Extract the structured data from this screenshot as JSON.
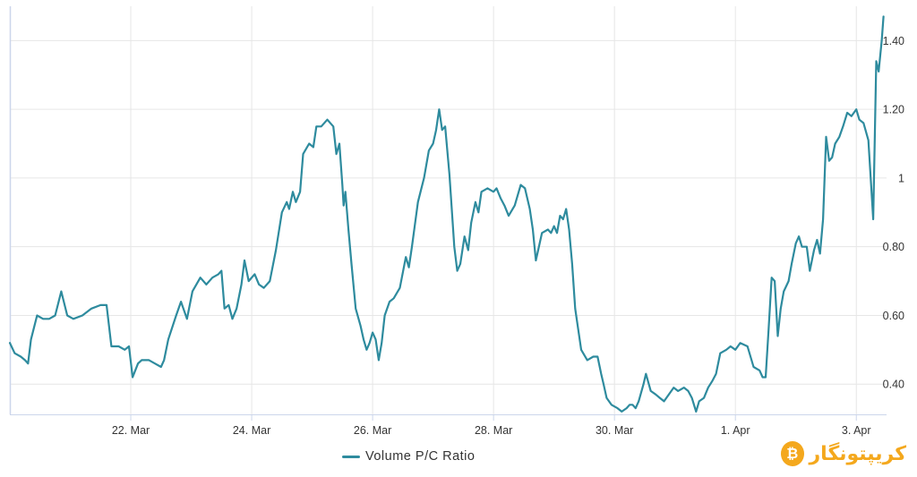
{
  "chart_data": {
    "type": "line",
    "series": [
      {
        "name": "Volume P/C Ratio",
        "color": "#2e8b9e",
        "points": [
          [
            0,
            0.52
          ],
          [
            0.08,
            0.49
          ],
          [
            0.18,
            0.48
          ],
          [
            0.25,
            0.47
          ],
          [
            0.3,
            0.46
          ],
          [
            0.35,
            0.53
          ],
          [
            0.45,
            0.6
          ],
          [
            0.55,
            0.59
          ],
          [
            0.65,
            0.59
          ],
          [
            0.75,
            0.6
          ],
          [
            0.85,
            0.67
          ],
          [
            0.95,
            0.6
          ],
          [
            1.05,
            0.59
          ],
          [
            1.2,
            0.6
          ],
          [
            1.35,
            0.62
          ],
          [
            1.5,
            0.63
          ],
          [
            1.6,
            0.63
          ],
          [
            1.68,
            0.51
          ],
          [
            1.8,
            0.51
          ],
          [
            1.9,
            0.5
          ],
          [
            1.97,
            0.51
          ],
          [
            2.03,
            0.42
          ],
          [
            2.12,
            0.46
          ],
          [
            2.18,
            0.47
          ],
          [
            2.3,
            0.47
          ],
          [
            2.4,
            0.46
          ],
          [
            2.5,
            0.45
          ],
          [
            2.55,
            0.47
          ],
          [
            2.62,
            0.53
          ],
          [
            2.75,
            0.6
          ],
          [
            2.83,
            0.64
          ],
          [
            2.93,
            0.59
          ],
          [
            3.02,
            0.67
          ],
          [
            3.15,
            0.71
          ],
          [
            3.25,
            0.69
          ],
          [
            3.35,
            0.71
          ],
          [
            3.45,
            0.72
          ],
          [
            3.5,
            0.73
          ],
          [
            3.55,
            0.62
          ],
          [
            3.62,
            0.63
          ],
          [
            3.68,
            0.59
          ],
          [
            3.75,
            0.62
          ],
          [
            3.83,
            0.69
          ],
          [
            3.88,
            0.76
          ],
          [
            3.95,
            0.7
          ],
          [
            4.05,
            0.72
          ],
          [
            4.12,
            0.69
          ],
          [
            4.2,
            0.68
          ],
          [
            4.3,
            0.7
          ],
          [
            4.4,
            0.79
          ],
          [
            4.5,
            0.9
          ],
          [
            4.58,
            0.93
          ],
          [
            4.62,
            0.91
          ],
          [
            4.68,
            0.96
          ],
          [
            4.73,
            0.93
          ],
          [
            4.8,
            0.96
          ],
          [
            4.85,
            1.07
          ],
          [
            4.95,
            1.1
          ],
          [
            5.02,
            1.09
          ],
          [
            5.07,
            1.15
          ],
          [
            5.15,
            1.15
          ],
          [
            5.25,
            1.17
          ],
          [
            5.35,
            1.15
          ],
          [
            5.4,
            1.07
          ],
          [
            5.45,
            1.1
          ],
          [
            5.5,
            0.98
          ],
          [
            5.52,
            0.92
          ],
          [
            5.55,
            0.96
          ],
          [
            5.6,
            0.85
          ],
          [
            5.65,
            0.75
          ],
          [
            5.72,
            0.62
          ],
          [
            5.8,
            0.57
          ],
          [
            5.85,
            0.53
          ],
          [
            5.9,
            0.5
          ],
          [
            5.95,
            0.52
          ],
          [
            6.0,
            0.55
          ],
          [
            6.05,
            0.53
          ],
          [
            6.1,
            0.47
          ],
          [
            6.15,
            0.52
          ],
          [
            6.2,
            0.6
          ],
          [
            6.28,
            0.64
          ],
          [
            6.35,
            0.65
          ],
          [
            6.45,
            0.68
          ],
          [
            6.55,
            0.77
          ],
          [
            6.6,
            0.74
          ],
          [
            6.65,
            0.8
          ],
          [
            6.75,
            0.93
          ],
          [
            6.85,
            1.0
          ],
          [
            6.93,
            1.08
          ],
          [
            7.0,
            1.1
          ],
          [
            7.05,
            1.14
          ],
          [
            7.1,
            1.2
          ],
          [
            7.15,
            1.14
          ],
          [
            7.2,
            1.15
          ],
          [
            7.27,
            1.01
          ],
          [
            7.35,
            0.8
          ],
          [
            7.4,
            0.73
          ],
          [
            7.45,
            0.75
          ],
          [
            7.52,
            0.83
          ],
          [
            7.58,
            0.79
          ],
          [
            7.63,
            0.87
          ],
          [
            7.7,
            0.93
          ],
          [
            7.75,
            0.9
          ],
          [
            7.8,
            0.96
          ],
          [
            7.9,
            0.97
          ],
          [
            8.0,
            0.96
          ],
          [
            8.05,
            0.97
          ],
          [
            8.12,
            0.94
          ],
          [
            8.18,
            0.92
          ],
          [
            8.25,
            0.89
          ],
          [
            8.35,
            0.92
          ],
          [
            8.45,
            0.98
          ],
          [
            8.52,
            0.97
          ],
          [
            8.6,
            0.91
          ],
          [
            8.65,
            0.85
          ],
          [
            8.7,
            0.76
          ],
          [
            8.75,
            0.8
          ],
          [
            8.8,
            0.84
          ],
          [
            8.9,
            0.85
          ],
          [
            8.95,
            0.84
          ],
          [
            9.0,
            0.86
          ],
          [
            9.05,
            0.84
          ],
          [
            9.1,
            0.89
          ],
          [
            9.15,
            0.88
          ],
          [
            9.2,
            0.91
          ],
          [
            9.25,
            0.85
          ],
          [
            9.3,
            0.75
          ],
          [
            9.35,
            0.62
          ],
          [
            9.45,
            0.5
          ],
          [
            9.55,
            0.47
          ],
          [
            9.65,
            0.48
          ],
          [
            9.72,
            0.48
          ],
          [
            9.78,
            0.43
          ],
          [
            9.82,
            0.4
          ],
          [
            9.87,
            0.36
          ],
          [
            9.95,
            0.34
          ],
          [
            10.05,
            0.33
          ],
          [
            10.12,
            0.32
          ],
          [
            10.2,
            0.33
          ],
          [
            10.25,
            0.34
          ],
          [
            10.3,
            0.34
          ],
          [
            10.35,
            0.33
          ],
          [
            10.4,
            0.35
          ],
          [
            10.48,
            0.4
          ],
          [
            10.52,
            0.43
          ],
          [
            10.6,
            0.38
          ],
          [
            10.68,
            0.37
          ],
          [
            10.75,
            0.36
          ],
          [
            10.82,
            0.35
          ],
          [
            10.9,
            0.37
          ],
          [
            10.98,
            0.39
          ],
          [
            11.05,
            0.38
          ],
          [
            11.15,
            0.39
          ],
          [
            11.22,
            0.38
          ],
          [
            11.28,
            0.36
          ],
          [
            11.35,
            0.32
          ],
          [
            11.4,
            0.35
          ],
          [
            11.48,
            0.36
          ],
          [
            11.55,
            0.39
          ],
          [
            11.62,
            0.41
          ],
          [
            11.68,
            0.43
          ],
          [
            11.75,
            0.49
          ],
          [
            11.85,
            0.5
          ],
          [
            11.92,
            0.51
          ],
          [
            12.0,
            0.5
          ],
          [
            12.08,
            0.52
          ],
          [
            12.2,
            0.51
          ],
          [
            12.3,
            0.45
          ],
          [
            12.4,
            0.44
          ],
          [
            12.45,
            0.42
          ],
          [
            12.5,
            0.42
          ],
          [
            12.55,
            0.56
          ],
          [
            12.6,
            0.71
          ],
          [
            12.65,
            0.7
          ],
          [
            12.7,
            0.54
          ],
          [
            12.75,
            0.62
          ],
          [
            12.8,
            0.67
          ],
          [
            12.88,
            0.7
          ],
          [
            12.93,
            0.75
          ],
          [
            13.0,
            0.81
          ],
          [
            13.05,
            0.83
          ],
          [
            13.1,
            0.8
          ],
          [
            13.18,
            0.8
          ],
          [
            13.23,
            0.73
          ],
          [
            13.3,
            0.79
          ],
          [
            13.35,
            0.82
          ],
          [
            13.4,
            0.78
          ],
          [
            13.45,
            0.88
          ],
          [
            13.5,
            1.12
          ],
          [
            13.55,
            1.05
          ],
          [
            13.6,
            1.06
          ],
          [
            13.65,
            1.1
          ],
          [
            13.72,
            1.12
          ],
          [
            13.78,
            1.15
          ],
          [
            13.85,
            1.19
          ],
          [
            13.92,
            1.18
          ],
          [
            14.0,
            1.2
          ],
          [
            14.05,
            1.17
          ],
          [
            14.12,
            1.16
          ],
          [
            14.2,
            1.11
          ],
          [
            14.28,
            0.88
          ],
          [
            14.33,
            1.34
          ],
          [
            14.37,
            1.31
          ],
          [
            14.42,
            1.4
          ],
          [
            14.45,
            1.47
          ]
        ]
      }
    ],
    "x_ticks": [
      {
        "label": "22. Mar",
        "value": 2
      },
      {
        "label": "24. Mar",
        "value": 4
      },
      {
        "label": "26. Mar",
        "value": 6
      },
      {
        "label": "28. Mar",
        "value": 8
      },
      {
        "label": "30. Mar",
        "value": 10
      },
      {
        "label": "1. Apr",
        "value": 12
      },
      {
        "label": "3. Apr",
        "value": 14
      }
    ],
    "y_ticks": [
      {
        "label": "0.40",
        "value": 0.4
      },
      {
        "label": "0.60",
        "value": 0.6
      },
      {
        "label": "0.80",
        "value": 0.8
      },
      {
        "label": "1",
        "value": 1.0
      },
      {
        "label": "1.20",
        "value": 1.2
      },
      {
        "label": "1.40",
        "value": 1.4
      }
    ],
    "xlim": [
      0,
      14.5
    ],
    "ylim": [
      0.312,
      1.5
    ],
    "x_axis_origin_date": "20. Mar",
    "y_axis_position": "right",
    "grid": true,
    "legend_position": "bottom-center",
    "colors": {
      "grid": "#e6e6e6",
      "axis": "#ccd6eb"
    }
  },
  "legend": {
    "label": "Volume P/C Ratio"
  },
  "watermark": {
    "text": "کریپتونگار",
    "logo_glyph": "₿"
  }
}
